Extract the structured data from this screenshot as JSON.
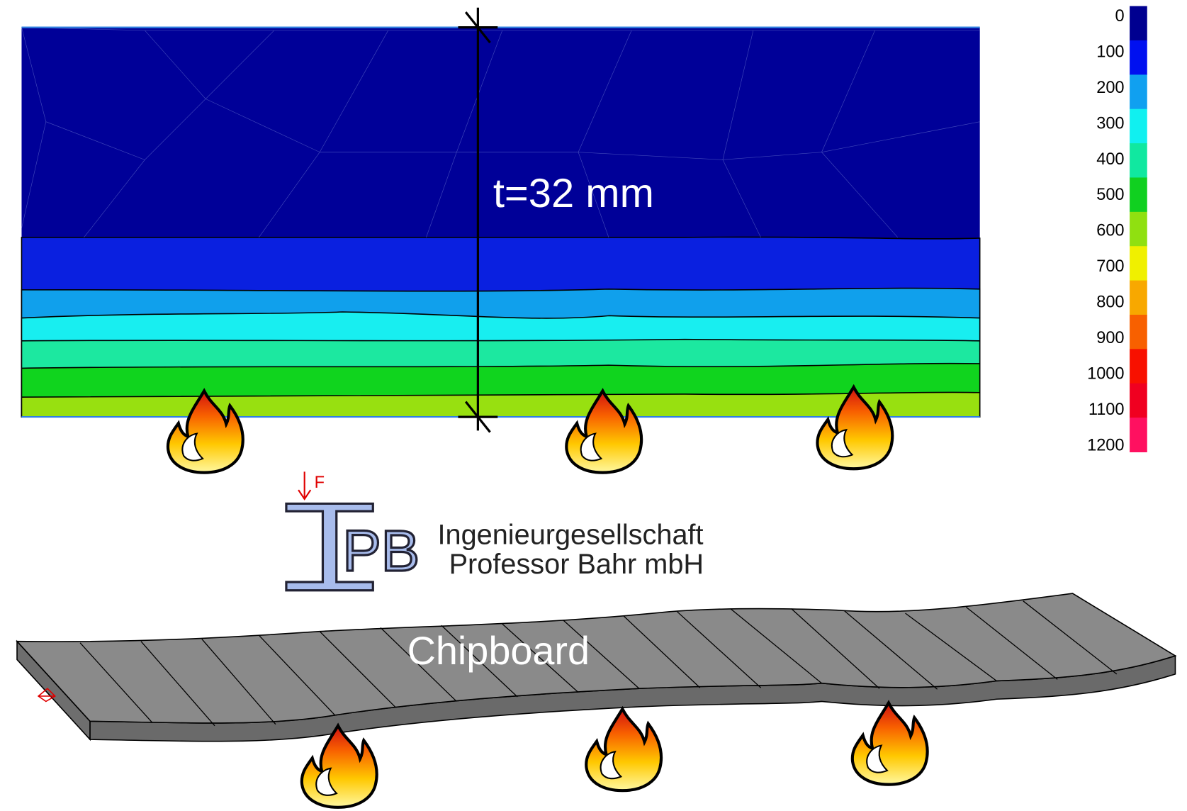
{
  "contour": {
    "thickness_label": "t=32 mm"
  },
  "legend": {
    "labels": [
      0,
      100,
      200,
      300,
      400,
      500,
      600,
      700,
      800,
      900,
      1000,
      1100,
      1200
    ],
    "colors": [
      "#000090",
      "#0010f0",
      "#10a0f0",
      "#10f0f0",
      "#10e8a0",
      "#10d020",
      "#90e010",
      "#f0f000",
      "#f8a800",
      "#f86000",
      "#f81000",
      "#f00020",
      "#ff1060"
    ]
  },
  "logo": {
    "letters": "PB",
    "force": "F",
    "company": [
      "Ingenieurgesellschaft",
      "Professor Bahr mbH"
    ]
  },
  "model": {
    "label": "Chipboard"
  }
}
